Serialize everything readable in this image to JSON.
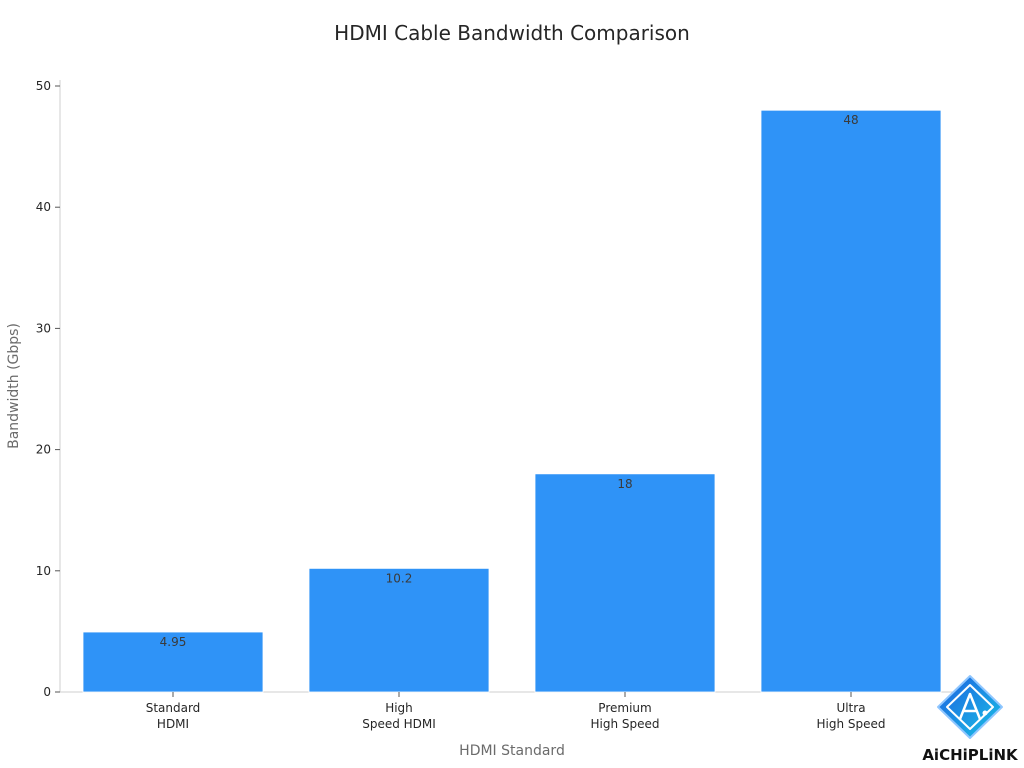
{
  "chart_data": {
    "type": "bar",
    "title": "HDMI Cable Bandwidth Comparison",
    "xlabel": "HDMI Standard",
    "ylabel": "Bandwidth (Gbps)",
    "categories": [
      [
        "Standard",
        "HDMI"
      ],
      [
        "High",
        "Speed HDMI"
      ],
      [
        "Premium",
        "High Speed"
      ],
      [
        "Ultra",
        "High Speed"
      ]
    ],
    "values": [
      4.95,
      10.2,
      18,
      48
    ],
    "value_labels": [
      "4.95",
      "10.2",
      "18",
      "48"
    ],
    "ylim": [
      0,
      50
    ],
    "yticks": [
      0,
      10,
      20,
      30,
      40,
      50
    ],
    "bar_color": "#2f93f7",
    "grid": false,
    "legend": "none"
  },
  "watermark": {
    "brand": "AiCHiPLiNK",
    "colors": [
      "#1e5fe0",
      "#19c3e6"
    ]
  }
}
